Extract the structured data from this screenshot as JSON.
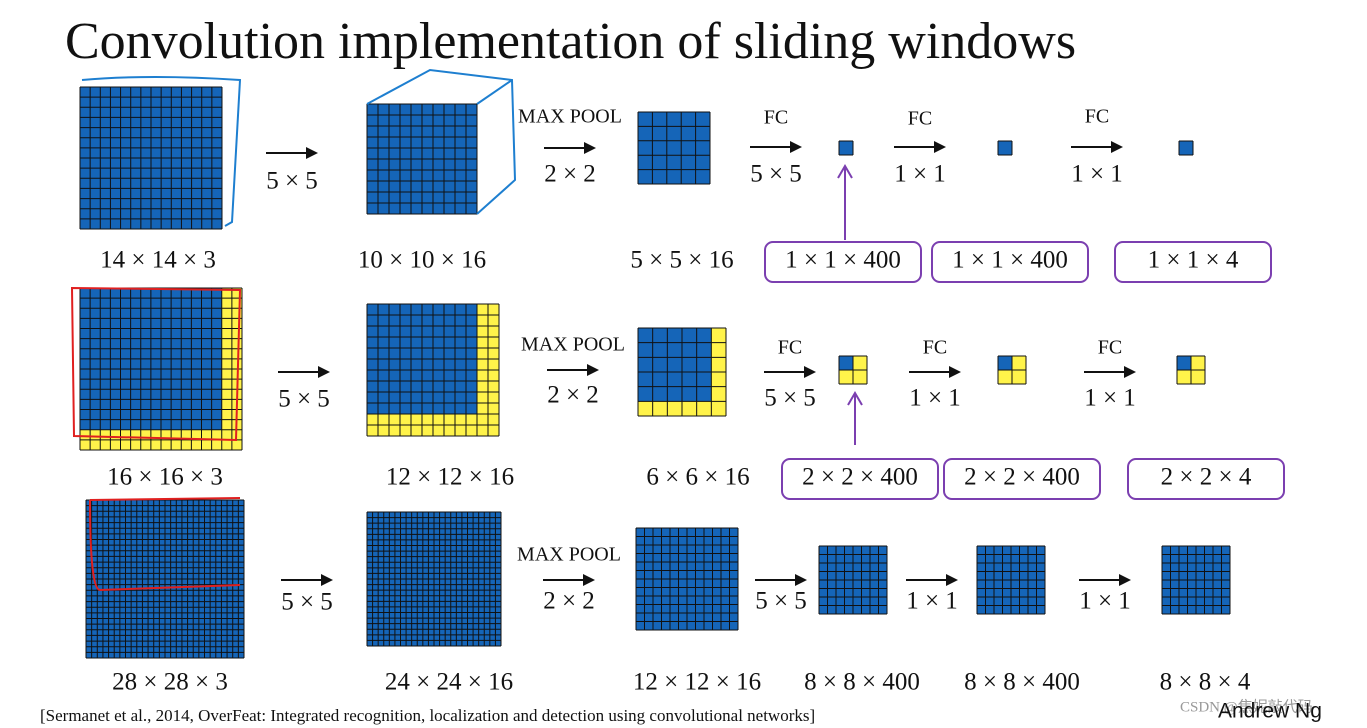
{
  "title": "Convolution implementation of sliding windows",
  "rows": [
    {
      "volumes": [
        "14 × 14 × 3",
        "10 × 10 × 16",
        "5 × 5 × 16",
        "1 × 1 × 400",
        "1 × 1 × 400",
        "1 × 1 × 4"
      ],
      "ops": [
        {
          "bottom": "5 × 5"
        },
        {
          "top": "MAX POOL",
          "bottom": "2 × 2"
        },
        {
          "top": "FC",
          "bottom": "5 × 5"
        },
        {
          "top": "FC",
          "bottom": "1 × 1"
        },
        {
          "top": "FC",
          "bottom": "1 × 1"
        }
      ]
    },
    {
      "volumes": [
        "16 × 16 × 3",
        "12 × 12 × 16",
        "6 × 6 × 16",
        "2 × 2 × 400",
        "2 × 2 × 400",
        "2 × 2 × 4"
      ],
      "ops": [
        {
          "bottom": "5 × 5"
        },
        {
          "top": "MAX POOL",
          "bottom": "2 × 2"
        },
        {
          "top": "FC",
          "bottom": "5 × 5"
        },
        {
          "top": "FC",
          "bottom": "1 × 1"
        },
        {
          "top": "FC",
          "bottom": "1 × 1"
        }
      ]
    },
    {
      "volumes": [
        "28 × 28 × 3",
        "24 × 24 × 16",
        "12 × 12 × 16",
        "8 × 8 × 400",
        "8 × 8 × 400",
        "8 × 8 × 4"
      ],
      "ops": [
        {
          "bottom": "5 × 5"
        },
        {
          "top": "MAX POOL",
          "bottom": "2 × 2"
        },
        {
          "bottom": "5 × 5"
        },
        {
          "bottom": "1 × 1"
        },
        {
          "bottom": "1 × 1"
        }
      ]
    }
  ],
  "citation": "[Sermanet et al., 2014, OverFeat: Integrated recognition, localization and detection using convolutional networks]",
  "author": "Andrew Ng",
  "watermark": "CSDN @焦妮敲代码"
}
